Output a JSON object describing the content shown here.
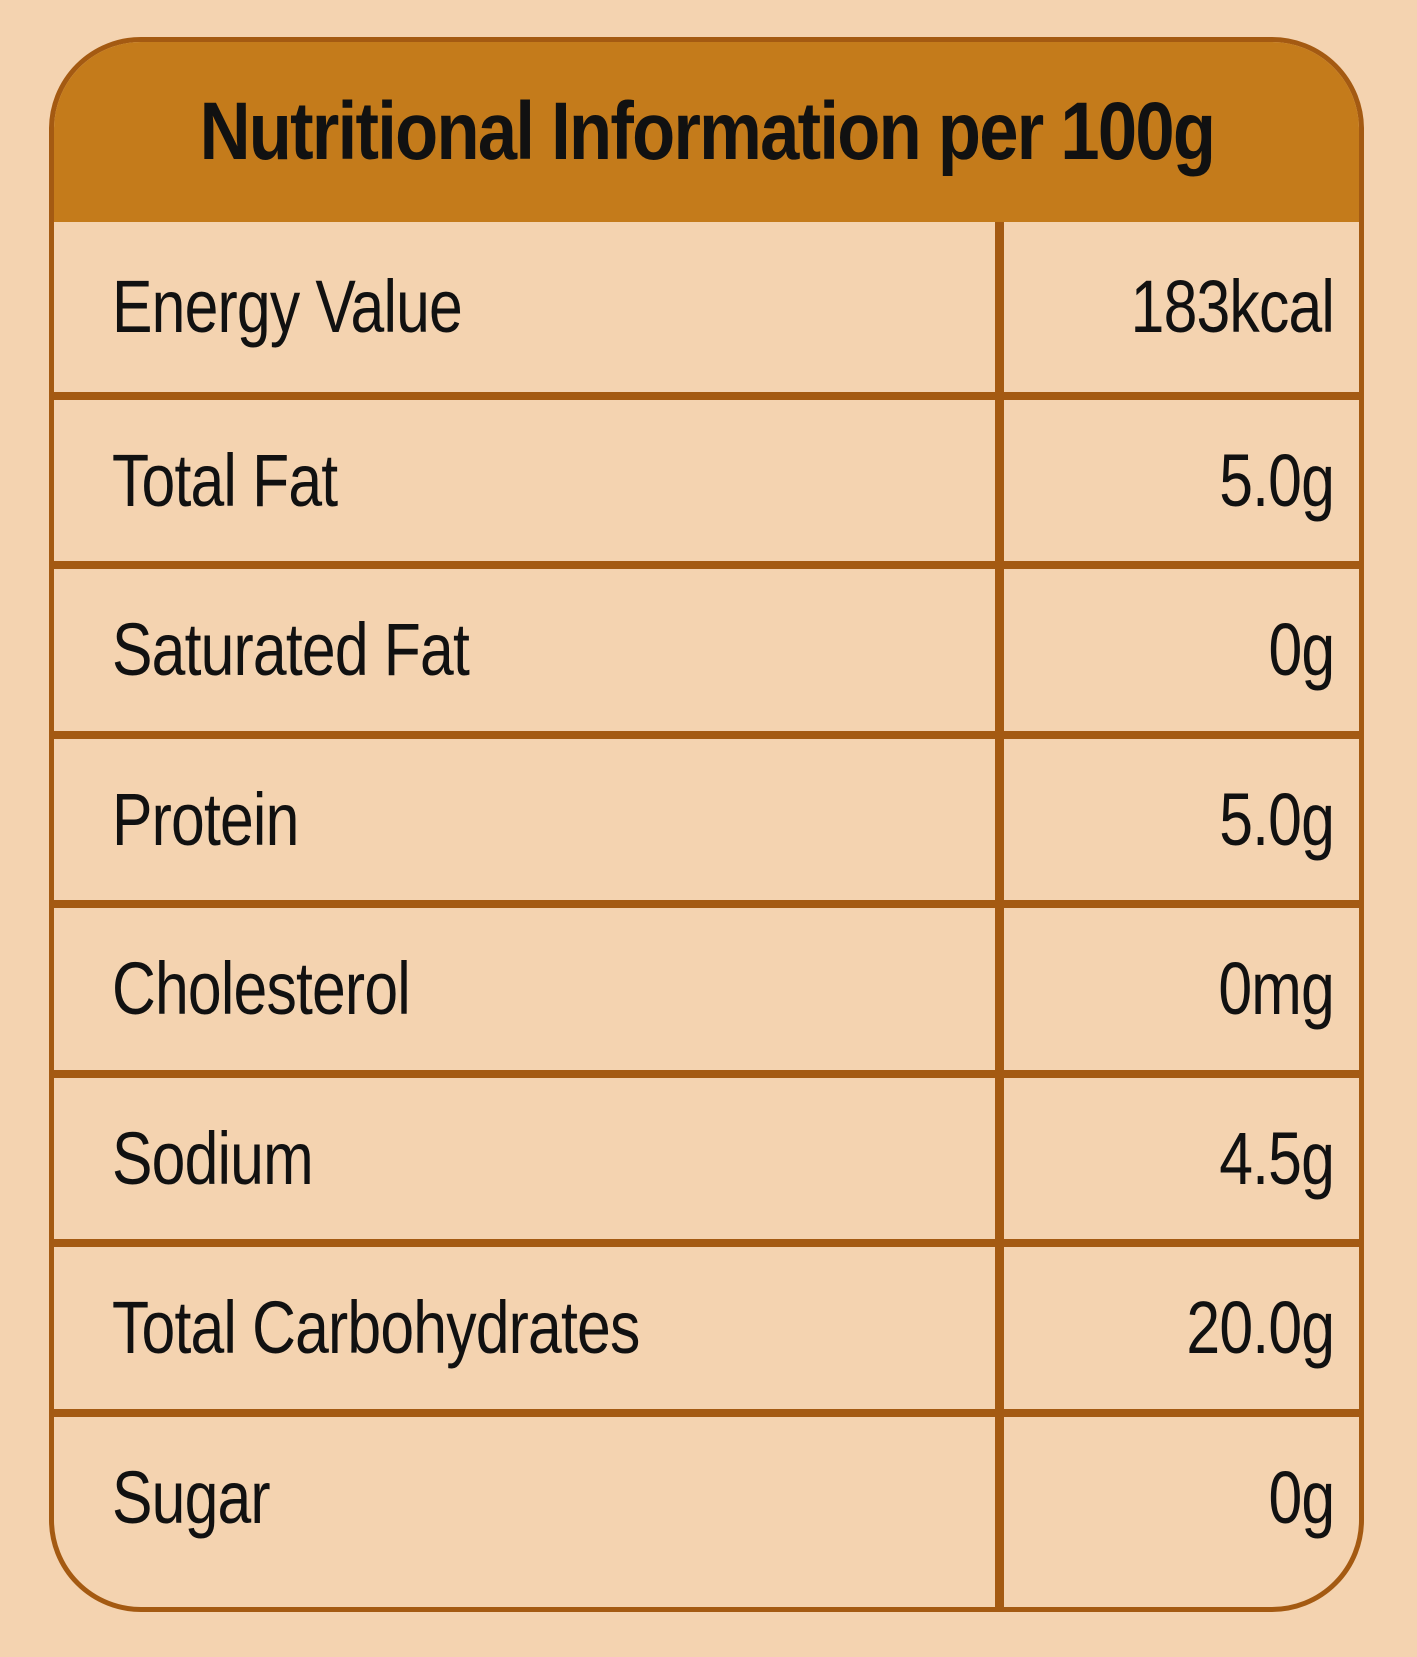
{
  "title": "Nutritional  Information per 100g",
  "colors": {
    "background": "#f4d3b0",
    "header": "#c47b1b",
    "border": "#a45a12",
    "text": "#111111"
  },
  "rows": [
    {
      "label": "Energy Value",
      "value": "183kcal"
    },
    {
      "label": "Total Fat",
      "value": "5.0g"
    },
    {
      "label": "Saturated Fat",
      "value": "0g"
    },
    {
      "label": "Protein",
      "value": "5.0g"
    },
    {
      "label": "Cholesterol",
      "value": "0mg"
    },
    {
      "label": "Sodium",
      "value": "4.5g"
    },
    {
      "label": "Total Carbohydrates",
      "value": "20.0g"
    },
    {
      "label": "Sugar",
      "value": "0g"
    }
  ]
}
